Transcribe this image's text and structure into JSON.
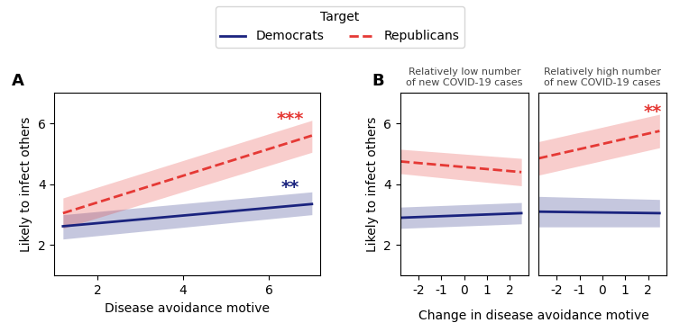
{
  "title": "Target",
  "legend": "upper center",
  "chart_data": [
    {
      "type": "line",
      "title": "A",
      "xlabel": "Disease avoidance motive",
      "ylabel": "Likely to infect others",
      "xlim": [
        1,
        7.2
      ],
      "ylim": [
        1,
        7
      ],
      "xticks": [
        2,
        4,
        6
      ],
      "yticks": [
        2,
        4,
        6
      ],
      "series": [
        {
          "name": "Democrats",
          "color": "#1a237e",
          "line_style": "solid",
          "x": [
            1.2,
            7.0
          ],
          "values": [
            2.62,
            3.35
          ],
          "ci_lo": [
            2.2,
            3.0
          ],
          "ci_hi": [
            3.0,
            3.75
          ]
        },
        {
          "name": "Republicans",
          "color": "#e53935",
          "line_style": "dashed",
          "x": [
            1.2,
            7.0
          ],
          "values": [
            3.05,
            5.6
          ],
          "ci_lo": [
            2.55,
            5.05
          ],
          "ci_hi": [
            3.55,
            6.1
          ]
        }
      ],
      "annotations": [
        {
          "text": "***",
          "x": 6.5,
          "y": 5.85,
          "color": "#e53935"
        },
        {
          "text": "**",
          "x": 6.5,
          "y": 3.6,
          "color": "#1a237e"
        }
      ]
    },
    {
      "type": "line",
      "title": "B",
      "subtitle": "Relatively low number\nof new COVID-19 cases",
      "xlabel": "Change in disease avoidance motive",
      "ylabel": "Likely to infect others",
      "xlim": [
        -2.8,
        2.8
      ],
      "ylim": [
        1,
        7
      ],
      "xticks": [
        -2,
        -1,
        0,
        1,
        2
      ],
      "yticks": [
        2,
        4,
        6
      ],
      "series": [
        {
          "name": "Democrats",
          "color": "#1a237e",
          "line_style": "solid",
          "x": [
            -2.8,
            2.5
          ],
          "values": [
            2.9,
            3.05
          ],
          "ci_lo": [
            2.55,
            2.7
          ],
          "ci_hi": [
            3.25,
            3.4
          ]
        },
        {
          "name": "Republicans",
          "color": "#e53935",
          "line_style": "dashed",
          "x": [
            -2.8,
            2.5
          ],
          "values": [
            4.75,
            4.4
          ],
          "ci_lo": [
            4.35,
            3.95
          ],
          "ci_hi": [
            5.15,
            4.85
          ]
        }
      ]
    },
    {
      "type": "line",
      "subtitle": "Relatively high number\nof new COVID-19 cases",
      "xlim": [
        -2.8,
        2.8
      ],
      "ylim": [
        1,
        7
      ],
      "xticks": [
        -2,
        -1,
        0,
        1,
        2
      ],
      "yticks": [
        2,
        4,
        6
      ],
      "tick_labels": "x",
      "series": [
        {
          "name": "Democrats",
          "color": "#1a237e",
          "line_style": "solid",
          "x": [
            -2.8,
            2.5
          ],
          "values": [
            3.1,
            3.05
          ],
          "ci_lo": [
            2.6,
            2.6
          ],
          "ci_hi": [
            3.6,
            3.5
          ]
        },
        {
          "name": "Republicans",
          "color": "#e53935",
          "line_style": "dashed",
          "x": [
            -2.8,
            2.5
          ],
          "values": [
            4.85,
            5.75
          ],
          "ci_lo": [
            4.3,
            5.2
          ],
          "ci_hi": [
            5.4,
            6.3
          ]
        }
      ],
      "annotations": [
        {
          "text": "**",
          "x": 2.2,
          "y": 6.1,
          "color": "#e53935"
        }
      ]
    }
  ]
}
